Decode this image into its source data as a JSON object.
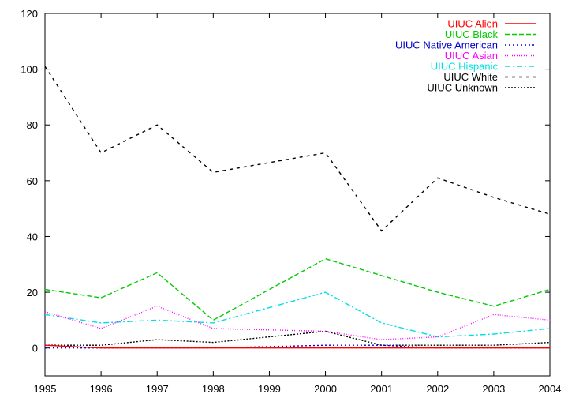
{
  "chart_data": {
    "type": "line",
    "title": "",
    "xlabel": "",
    "ylabel": "",
    "x": [
      1995,
      1996,
      1997,
      1998,
      2000,
      2001,
      2002,
      2003,
      2004
    ],
    "xticks": [
      "1995",
      "1996",
      "1997",
      "1998",
      "1999",
      "2000",
      "2001",
      "2002",
      "2003",
      "2004"
    ],
    "yticks": [
      "0",
      "20",
      "40",
      "60",
      "80",
      "100",
      "120"
    ],
    "xlim": [
      1995,
      2004
    ],
    "ylim": [
      -10,
      120
    ],
    "grid": false,
    "legend_position": "top-right",
    "series": [
      {
        "name": "UIUC Alien",
        "color": "#ff0000",
        "dash": "solid",
        "values": [
          1,
          0,
          0,
          0,
          0,
          0,
          0,
          0,
          0
        ]
      },
      {
        "name": "UIUC Black",
        "color": "#00cc00",
        "dash": "dashed",
        "values": [
          21,
          18,
          27,
          10,
          32,
          26,
          20,
          15,
          21
        ]
      },
      {
        "name": "UIUC Native American",
        "color": "#0000cc",
        "dash": "dotted",
        "values": [
          0,
          0,
          0,
          0,
          1,
          1,
          0,
          0,
          0
        ]
      },
      {
        "name": "UIUC Asian",
        "color": "#ff00ff",
        "dash": "fine-dotted",
        "values": [
          13,
          7,
          15,
          7,
          6,
          3,
          4,
          12,
          10
        ]
      },
      {
        "name": "UIUC Hispanic",
        "color": "#00e0e0",
        "dash": "dash-dot",
        "values": [
          12,
          9,
          10,
          9,
          20,
          9,
          4,
          5,
          7
        ]
      },
      {
        "name": "UIUC White",
        "color": "#000000",
        "dash": "sparse-dashed",
        "values": [
          101,
          70,
          80,
          63,
          70,
          42,
          61,
          54,
          48
        ]
      },
      {
        "name": "UIUC Unknown",
        "color": "#000000",
        "dash": "dense-dotted",
        "values": [
          1,
          1,
          3,
          2,
          6,
          1,
          1,
          1,
          2
        ]
      }
    ]
  }
}
